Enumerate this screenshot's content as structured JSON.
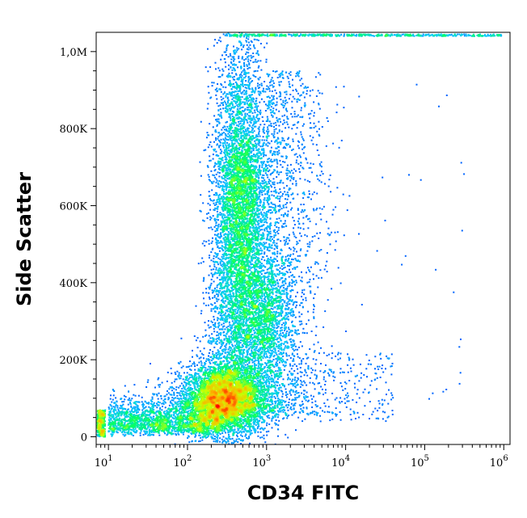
{
  "chart_data": {
    "type": "scatter",
    "subtype": "flow-cytometry density plot",
    "title": "",
    "xlabel": "CD34 FITC",
    "ylabel": "Side Scatter",
    "x_scale": "log",
    "y_scale": "linear",
    "xlim": [
      7,
      1200000
    ],
    "ylim": [
      -20000,
      1050000
    ],
    "x_ticks": [
      {
        "value": 10,
        "base": "10",
        "exp": "1"
      },
      {
        "value": 100,
        "base": "10",
        "exp": "2"
      },
      {
        "value": 1000,
        "base": "10",
        "exp": "3"
      },
      {
        "value": 10000,
        "base": "10",
        "exp": "4"
      },
      {
        "value": 100000,
        "base": "10",
        "exp": "5"
      },
      {
        "value": 1000000,
        "base": "10",
        "exp": "6"
      }
    ],
    "y_ticks": [
      {
        "value": 0,
        "label": "0"
      },
      {
        "value": 200000,
        "label": "200K"
      },
      {
        "value": 400000,
        "label": "400K"
      },
      {
        "value": 600000,
        "label": "600K"
      },
      {
        "value": 800000,
        "label": "800K"
      },
      {
        "value": 1000000,
        "label": "1,0M"
      }
    ],
    "populations": [
      {
        "x_center": 300,
        "y_center": 95000,
        "x_spread_decades": 0.28,
        "y_spread": 45000,
        "peak_density": "high"
      },
      {
        "x_center": 470,
        "y_center": 640000,
        "x_spread_decades": 0.17,
        "y_spread": 200000,
        "peak_density": "medium"
      },
      {
        "x_center": 900,
        "y_center": 300000,
        "x_spread_decades": 0.18,
        "y_spread": 90000,
        "peak_density": "low"
      }
    ],
    "colormap": [
      "#0000ff",
      "#0066ff",
      "#00c8ff",
      "#00ff66",
      "#c8ff00",
      "#ffb000",
      "#ff0000"
    ],
    "grid": false,
    "legend": "none"
  }
}
